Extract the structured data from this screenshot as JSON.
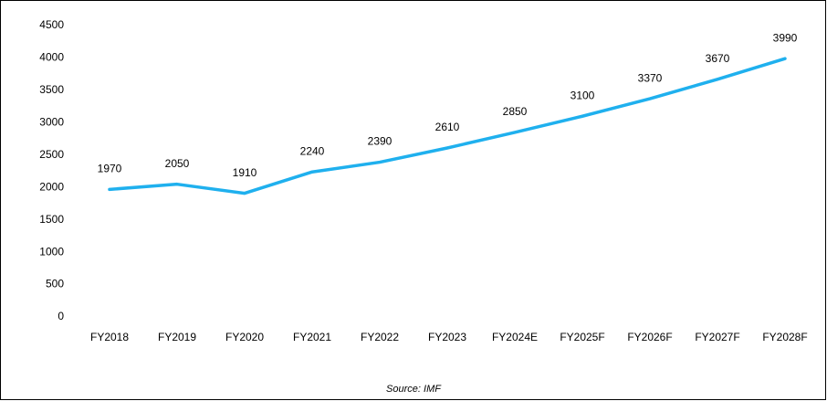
{
  "chart_data": {
    "type": "line",
    "categories": [
      "FY2018",
      "FY2019",
      "FY2020",
      "FY2021",
      "FY2022",
      "FY2023",
      "FY2024E",
      "FY2025F",
      "FY2026F",
      "FY2027F",
      "FY2028F"
    ],
    "values": [
      1970,
      2050,
      1910,
      2240,
      2390,
      2610,
      2850,
      3100,
      3370,
      3670,
      3990
    ],
    "color": "#1fb0ee",
    "ylim": [
      0,
      4500
    ],
    "yticks": [
      0,
      500,
      1000,
      1500,
      2000,
      2500,
      3000,
      3500,
      4000,
      4500
    ],
    "grid": false,
    "source": "Source: IMF"
  }
}
